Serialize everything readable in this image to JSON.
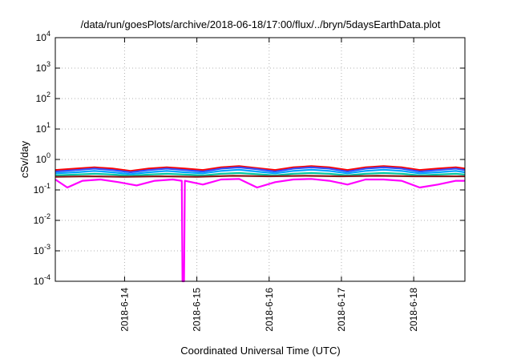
{
  "chart_data": {
    "type": "line",
    "title": "/data/run/goesPlots/archive/2018-06-18/17:00/flux/../bryn/5daysEarthData.plot",
    "xlabel": "Coordinated Universal Time (UTC)",
    "ylabel": "cSv/day",
    "y_scale": "log",
    "ylim": [
      0.0001,
      10000
    ],
    "xlim": [
      "2018-06-13T01:00",
      "2018-06-18T17:00"
    ],
    "grid": true,
    "legend": "none",
    "y_ticks": [
      {
        "value": 0.0001,
        "base": "10",
        "exp": "-4"
      },
      {
        "value": 0.001,
        "base": "10",
        "exp": "-3"
      },
      {
        "value": 0.01,
        "base": "10",
        "exp": "-2"
      },
      {
        "value": 0.1,
        "base": "10",
        "exp": "-1"
      },
      {
        "value": 1,
        "base": "10",
        "exp": "0"
      },
      {
        "value": 10,
        "base": "10",
        "exp": "1"
      },
      {
        "value": 100,
        "base": "10",
        "exp": "2"
      },
      {
        "value": 1000,
        "base": "10",
        "exp": "3"
      },
      {
        "value": 10000,
        "base": "10",
        "exp": "4"
      }
    ],
    "x_ticks": [
      {
        "value": "2018-06-14T00:00",
        "label": "2018-6-14"
      },
      {
        "value": "2018-06-15T00:00",
        "label": "2018-6-15"
      },
      {
        "value": "2018-06-16T00:00",
        "label": "2018-6-16"
      },
      {
        "value": "2018-06-17T00:00",
        "label": "2018-6-17"
      },
      {
        "value": "2018-06-18T00:00",
        "label": "2018-6-18"
      }
    ],
    "series": [
      {
        "color": "#ff0000",
        "points": [
          [
            "2018-06-13T01:00",
            0.45
          ],
          [
            "2018-06-13T08:00",
            0.5
          ],
          [
            "2018-06-13T14:00",
            0.55
          ],
          [
            "2018-06-13T20:00",
            0.5
          ],
          [
            "2018-06-14T02:00",
            0.42
          ],
          [
            "2018-06-14T08:00",
            0.5
          ],
          [
            "2018-06-14T14:00",
            0.55
          ],
          [
            "2018-06-14T20:00",
            0.5
          ],
          [
            "2018-06-15T02:00",
            0.45
          ],
          [
            "2018-06-15T08:00",
            0.55
          ],
          [
            "2018-06-15T14:00",
            0.6
          ],
          [
            "2018-06-15T20:00",
            0.52
          ],
          [
            "2018-06-16T02:00",
            0.45
          ],
          [
            "2018-06-16T08:00",
            0.55
          ],
          [
            "2018-06-16T14:00",
            0.6
          ],
          [
            "2018-06-16T20:00",
            0.55
          ],
          [
            "2018-06-17T02:00",
            0.45
          ],
          [
            "2018-06-17T08:00",
            0.55
          ],
          [
            "2018-06-17T14:00",
            0.6
          ],
          [
            "2018-06-17T20:00",
            0.55
          ],
          [
            "2018-06-18T02:00",
            0.45
          ],
          [
            "2018-06-18T08:00",
            0.5
          ],
          [
            "2018-06-18T14:00",
            0.55
          ],
          [
            "2018-06-18T17:00",
            0.5
          ]
        ]
      },
      {
        "color": "#3050ff",
        "points": [
          [
            "2018-06-13T01:00",
            0.4
          ],
          [
            "2018-06-13T08:00",
            0.45
          ],
          [
            "2018-06-13T14:00",
            0.5
          ],
          [
            "2018-06-13T20:00",
            0.45
          ],
          [
            "2018-06-14T02:00",
            0.38
          ],
          [
            "2018-06-14T08:00",
            0.45
          ],
          [
            "2018-06-14T14:00",
            0.5
          ],
          [
            "2018-06-14T20:00",
            0.45
          ],
          [
            "2018-06-15T02:00",
            0.4
          ],
          [
            "2018-06-15T08:00",
            0.5
          ],
          [
            "2018-06-15T14:00",
            0.55
          ],
          [
            "2018-06-15T20:00",
            0.48
          ],
          [
            "2018-06-16T02:00",
            0.4
          ],
          [
            "2018-06-16T08:00",
            0.5
          ],
          [
            "2018-06-16T14:00",
            0.55
          ],
          [
            "2018-06-16T20:00",
            0.5
          ],
          [
            "2018-06-17T02:00",
            0.4
          ],
          [
            "2018-06-17T08:00",
            0.5
          ],
          [
            "2018-06-17T14:00",
            0.55
          ],
          [
            "2018-06-17T20:00",
            0.5
          ],
          [
            "2018-06-18T02:00",
            0.4
          ],
          [
            "2018-06-18T08:00",
            0.45
          ],
          [
            "2018-06-18T14:00",
            0.5
          ],
          [
            "2018-06-18T17:00",
            0.45
          ]
        ]
      },
      {
        "color": "#00a0ff",
        "points": [
          [
            "2018-06-13T01:00",
            0.35
          ],
          [
            "2018-06-13T08:00",
            0.38
          ],
          [
            "2018-06-13T14:00",
            0.42
          ],
          [
            "2018-06-13T20:00",
            0.38
          ],
          [
            "2018-06-14T02:00",
            0.33
          ],
          [
            "2018-06-14T08:00",
            0.38
          ],
          [
            "2018-06-14T14:00",
            0.42
          ],
          [
            "2018-06-14T20:00",
            0.38
          ],
          [
            "2018-06-15T02:00",
            0.35
          ],
          [
            "2018-06-15T08:00",
            0.42
          ],
          [
            "2018-06-15T14:00",
            0.46
          ],
          [
            "2018-06-15T20:00",
            0.4
          ],
          [
            "2018-06-16T02:00",
            0.35
          ],
          [
            "2018-06-16T08:00",
            0.42
          ],
          [
            "2018-06-16T14:00",
            0.46
          ],
          [
            "2018-06-16T20:00",
            0.42
          ],
          [
            "2018-06-17T02:00",
            0.35
          ],
          [
            "2018-06-17T08:00",
            0.42
          ],
          [
            "2018-06-17T14:00",
            0.46
          ],
          [
            "2018-06-17T20:00",
            0.42
          ],
          [
            "2018-06-18T02:00",
            0.35
          ],
          [
            "2018-06-18T08:00",
            0.38
          ],
          [
            "2018-06-18T14:00",
            0.42
          ],
          [
            "2018-06-18T17:00",
            0.38
          ]
        ]
      },
      {
        "color": "#00c8a0",
        "points": [
          [
            "2018-06-13T01:00",
            0.3
          ],
          [
            "2018-06-13T08:00",
            0.32
          ],
          [
            "2018-06-13T14:00",
            0.34
          ],
          [
            "2018-06-13T20:00",
            0.32
          ],
          [
            "2018-06-14T02:00",
            0.29
          ],
          [
            "2018-06-14T08:00",
            0.32
          ],
          [
            "2018-06-14T14:00",
            0.34
          ],
          [
            "2018-06-14T20:00",
            0.32
          ],
          [
            "2018-06-15T02:00",
            0.3
          ],
          [
            "2018-06-15T08:00",
            0.34
          ],
          [
            "2018-06-15T14:00",
            0.36
          ],
          [
            "2018-06-15T20:00",
            0.33
          ],
          [
            "2018-06-16T02:00",
            0.3
          ],
          [
            "2018-06-16T08:00",
            0.34
          ],
          [
            "2018-06-16T14:00",
            0.36
          ],
          [
            "2018-06-16T20:00",
            0.34
          ],
          [
            "2018-06-17T02:00",
            0.3
          ],
          [
            "2018-06-17T08:00",
            0.34
          ],
          [
            "2018-06-17T14:00",
            0.36
          ],
          [
            "2018-06-17T20:00",
            0.34
          ],
          [
            "2018-06-18T02:00",
            0.3
          ],
          [
            "2018-06-18T08:00",
            0.32
          ],
          [
            "2018-06-18T14:00",
            0.34
          ],
          [
            "2018-06-18T17:00",
            0.32
          ]
        ]
      },
      {
        "color": "#8b1a1a",
        "points": [
          [
            "2018-06-13T01:00",
            0.27
          ],
          [
            "2018-06-13T12:00",
            0.28
          ],
          [
            "2018-06-14T00:00",
            0.27
          ],
          [
            "2018-06-14T12:00",
            0.28
          ],
          [
            "2018-06-15T00:00",
            0.27
          ],
          [
            "2018-06-15T12:00",
            0.29
          ],
          [
            "2018-06-16T00:00",
            0.28
          ],
          [
            "2018-06-16T12:00",
            0.29
          ],
          [
            "2018-06-17T00:00",
            0.28
          ],
          [
            "2018-06-17T12:00",
            0.29
          ],
          [
            "2018-06-18T00:00",
            0.28
          ],
          [
            "2018-06-18T17:00",
            0.28
          ]
        ]
      },
      {
        "color": "#ff00ff",
        "points": [
          [
            "2018-06-13T01:00",
            0.22
          ],
          [
            "2018-06-13T05:00",
            0.12
          ],
          [
            "2018-06-13T10:00",
            0.2
          ],
          [
            "2018-06-13T16:00",
            0.22
          ],
          [
            "2018-06-13T22:00",
            0.18
          ],
          [
            "2018-06-14T04:00",
            0.14
          ],
          [
            "2018-06-14T10:00",
            0.2
          ],
          [
            "2018-06-14T16:00",
            0.22
          ],
          [
            "2018-06-14T19:00",
            0.2
          ],
          [
            "2018-06-14T19:15",
            0.0001
          ],
          [
            "2018-06-14T19:45",
            0.0001
          ],
          [
            "2018-06-14T20:00",
            0.2
          ],
          [
            "2018-06-15T02:00",
            0.15
          ],
          [
            "2018-06-15T08:00",
            0.22
          ],
          [
            "2018-06-15T14:00",
            0.23
          ],
          [
            "2018-06-15T20:00",
            0.12
          ],
          [
            "2018-06-16T02:00",
            0.18
          ],
          [
            "2018-06-16T08:00",
            0.22
          ],
          [
            "2018-06-16T14:00",
            0.23
          ],
          [
            "2018-06-16T20:00",
            0.2
          ],
          [
            "2018-06-17T02:00",
            0.15
          ],
          [
            "2018-06-17T08:00",
            0.22
          ],
          [
            "2018-06-17T14:00",
            0.22
          ],
          [
            "2018-06-17T20:00",
            0.2
          ],
          [
            "2018-06-18T02:00",
            0.12
          ],
          [
            "2018-06-18T08:00",
            0.15
          ],
          [
            "2018-06-18T14:00",
            0.2
          ],
          [
            "2018-06-18T17:00",
            0.2
          ]
        ]
      }
    ]
  }
}
